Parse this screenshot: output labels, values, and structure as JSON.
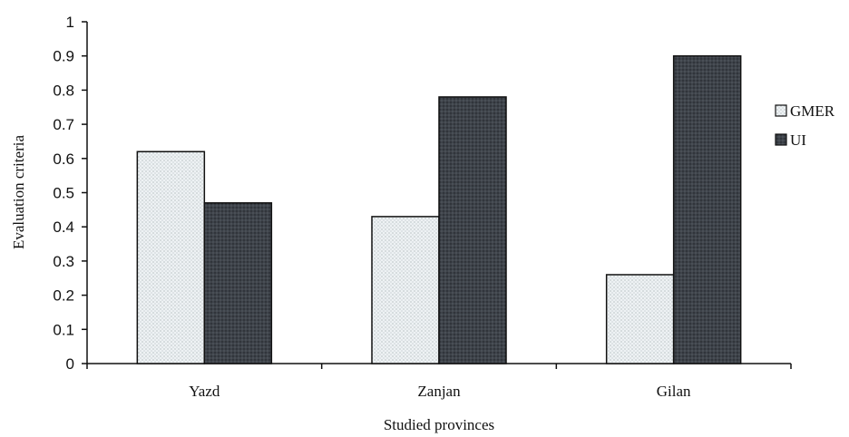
{
  "chart_data": {
    "type": "bar",
    "title": "",
    "xlabel": "Studied provinces",
    "ylabel": "Evaluation criteria",
    "categories": [
      "Yazd",
      "Zanjan",
      "Gilan"
    ],
    "series": [
      {
        "name": "GMER",
        "values": [
          0.62,
          0.43,
          0.26
        ],
        "color": "#eef2f4",
        "pattern": "dotted"
      },
      {
        "name": "UI",
        "values": [
          0.47,
          0.78,
          0.9
        ],
        "color": "#3b4047",
        "pattern": "dark-dotted"
      }
    ],
    "ylim": [
      0,
      1
    ],
    "yticks": [
      "0",
      "0.1",
      "0.2",
      "0.3",
      "0.4",
      "0.5",
      "0.6",
      "0.7",
      "0.8",
      "0.9",
      "1"
    ],
    "grid": false,
    "legend_position": "right"
  }
}
